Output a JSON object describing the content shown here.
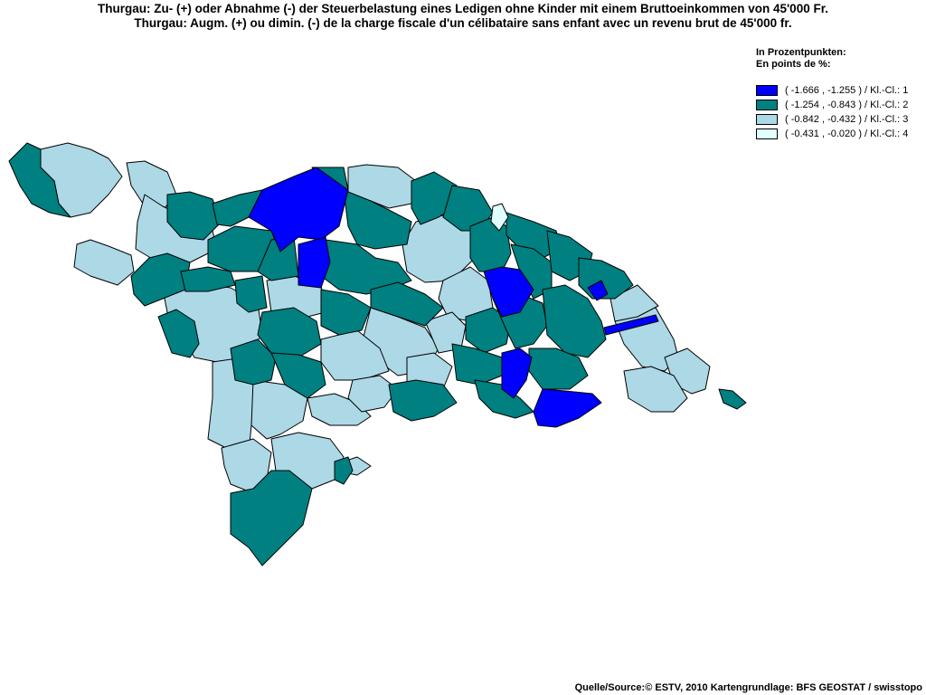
{
  "title_de": "Thurgau: Zu- (+) oder Abnahme (-) der Steuerbelastung eines Ledigen ohne Kinder mit einem Bruttoeinkommen von 45'000 Fr.",
  "title_fr": "Thurgau: Augm. (+) ou dimin. (-) de la charge fiscale d'un célibataire sans enfant avec un revenu brut de 45'000 fr.",
  "legend": {
    "unit_de": "In Prozentpunkten:",
    "unit_fr": "En points de %:",
    "classes": [
      {
        "label": "( -1.666 , -1.255 ) / Kl.-Cl.: 1",
        "color": "#0000ff"
      },
      {
        "label": "( -1.254 , -0.843 ) / Kl.-Cl.: 2",
        "color": "#008080"
      },
      {
        "label": "( -0.842 , -0.432 ) / Kl.-Cl.: 3",
        "color": "#add8e6"
      },
      {
        "label": "( -0.431 , -0.020 ) / Kl.-Cl.: 4",
        "color": "#e0ffff"
      }
    ]
  },
  "source": "Quelle/Source:© ESTV, 2010 Kartengrundlage: BFS GEOSTAT / swisstopo"
}
